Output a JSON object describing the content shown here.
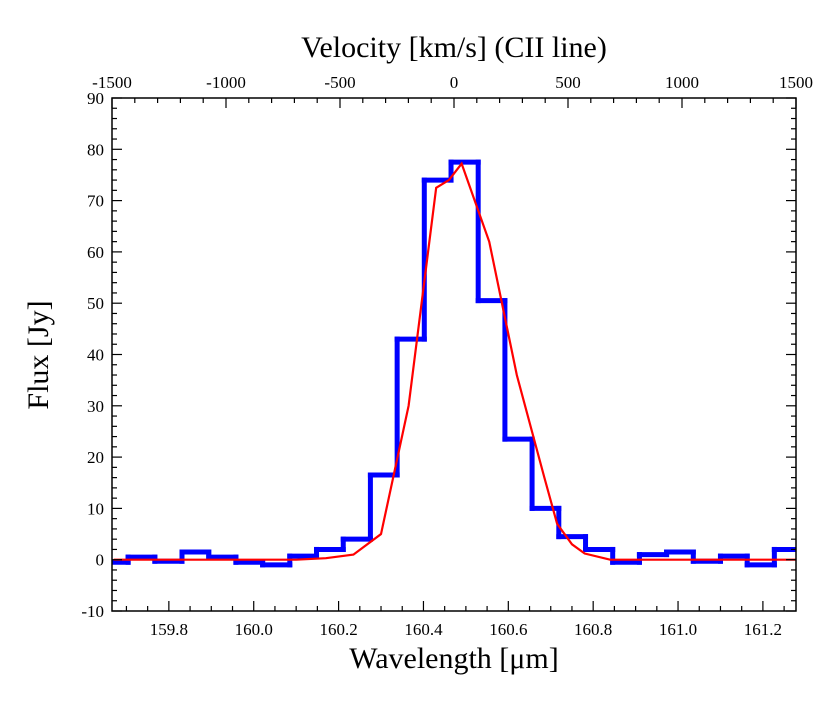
{
  "chart_data": {
    "type": "histogram",
    "xlabel": "Wavelength [μm]",
    "ylabel": "Flux [Jy]",
    "x2label": "Velocity [km/s] (CII line)",
    "xlim": [
      159.666,
      161.278
    ],
    "xticks": [
      159.8,
      {
        "value": 160.0,
        "label": "160.0"
      },
      160.2,
      160.4,
      160.6,
      160.8,
      {
        "value": 161.0,
        "label": "161.0"
      },
      161.2
    ],
    "x2lim": [
      -1500,
      1500
    ],
    "x2ticks": [
      -1500,
      -1000,
      -500,
      0,
      500,
      1000,
      1500
    ],
    "ylim": [
      -10,
      90
    ],
    "yticks": [
      -10,
      0,
      10,
      20,
      30,
      40,
      50,
      60,
      70,
      80,
      90
    ],
    "series": [
      {
        "type": "histogram",
        "color": "#0000ff",
        "bins": [
          159.641,
          159.704,
          159.767,
          159.831,
          159.894,
          159.958,
          160.021,
          160.085,
          160.148,
          160.211,
          160.275,
          160.338,
          160.402,
          160.465,
          160.529,
          160.592,
          160.656,
          160.719,
          160.782,
          160.846,
          160.909,
          160.973,
          161.036,
          161.1,
          161.163,
          161.227,
          161.29
        ],
        "values": [
          -0.5,
          0.5,
          -0.3,
          1.5,
          0.5,
          -0.5,
          -1,
          0.7,
          2,
          4,
          16.5,
          43,
          74,
          77.5,
          50.5,
          23.5,
          10,
          4.5,
          2,
          -0.5,
          1,
          1.5,
          -0.3,
          0.7,
          -1,
          2
        ]
      },
      {
        "type": "line",
        "color": "#ff0000",
        "x": [
          159.67,
          160.1,
          160.17,
          160.235,
          160.3,
          160.365,
          160.43,
          160.46,
          160.49,
          160.555,
          160.62,
          160.685,
          160.715,
          160.75,
          160.78,
          160.84,
          161.28
        ],
        "values": [
          0,
          0,
          0.3,
          1,
          5,
          30,
          72.5,
          74,
          77.2,
          62,
          36,
          16,
          7,
          3,
          1.2,
          0,
          0
        ]
      }
    ]
  }
}
